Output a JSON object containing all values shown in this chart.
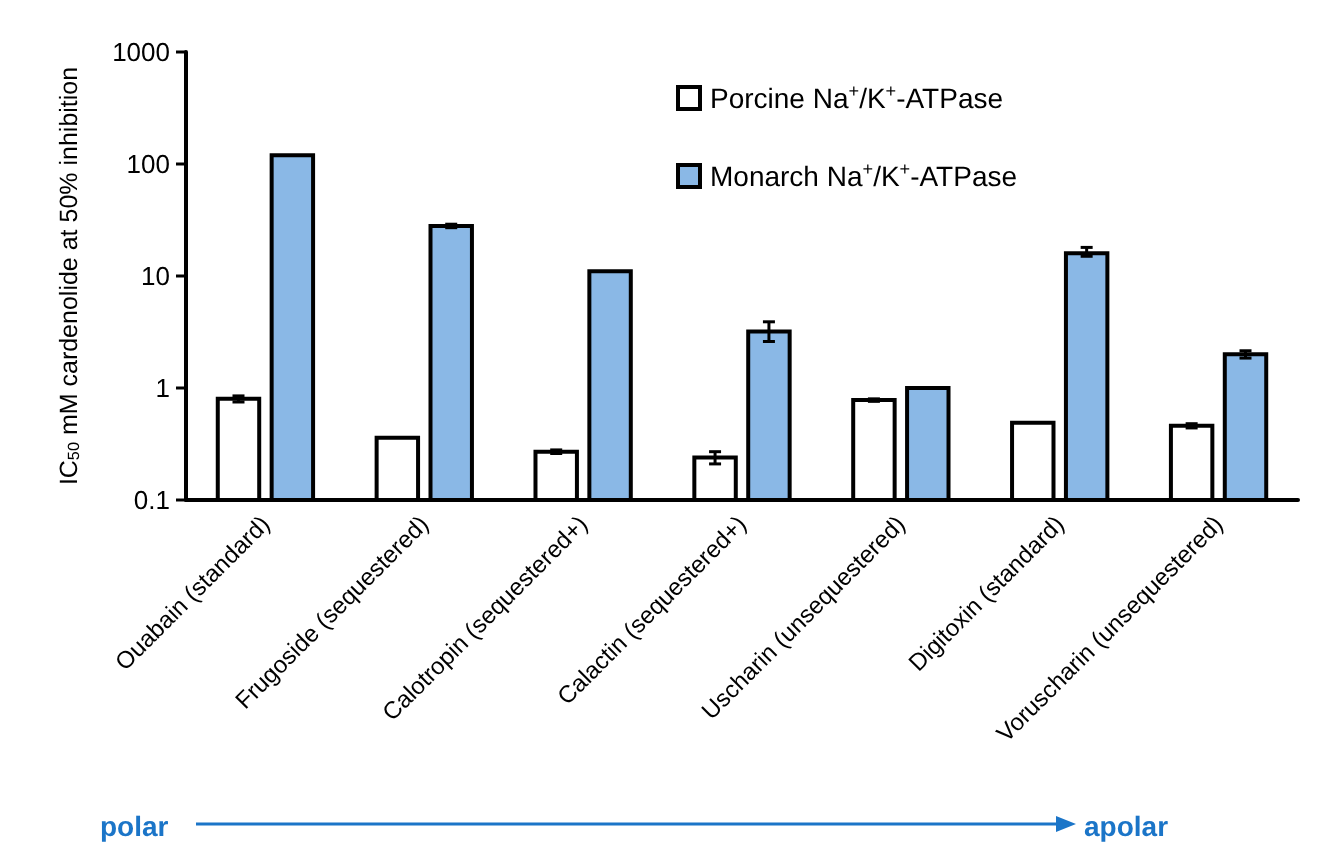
{
  "chart_data": {
    "type": "bar",
    "ylabel": "IC$_{50}$ mM cardenolide at 50% inhibition",
    "categories": [
      "Ouabain (standard)",
      "Frugoside (sequestered)",
      "Calotropin (sequestered+)",
      "Calactin (sequestered+)",
      "Uscharin (unsequestered)",
      "Digitoxin (standard)",
      "Voruscharin (unsequestered)"
    ],
    "series": [
      {
        "name": "Porcine Na$^{+}$/K$^{+}$-ATPase",
        "color": "#ffffff",
        "values": [
          0.8,
          0.36,
          0.27,
          0.24,
          0.78,
          0.49,
          0.46
        ],
        "errors": [
          0.05,
          null,
          0.01,
          0.03,
          0.02,
          null,
          0.02
        ]
      },
      {
        "name": "Monarch Na$^{+}$/K$^{+}$-ATPase",
        "color": "#8ab8e6",
        "values": [
          120,
          28,
          11,
          3.2,
          1.0,
          16,
          2.0
        ],
        "errors": [
          null,
          1,
          null,
          [
            2.6,
            3.9
          ],
          null,
          [
            15,
            18
          ],
          0.15
        ]
      }
    ],
    "ylim": [
      0.1,
      1000
    ],
    "yticks": [
      0.1,
      1,
      10,
      100,
      1000
    ],
    "log": "y",
    "grid": false,
    "legend": "top right",
    "annotations": [
      "polar",
      "apolar"
    ]
  }
}
